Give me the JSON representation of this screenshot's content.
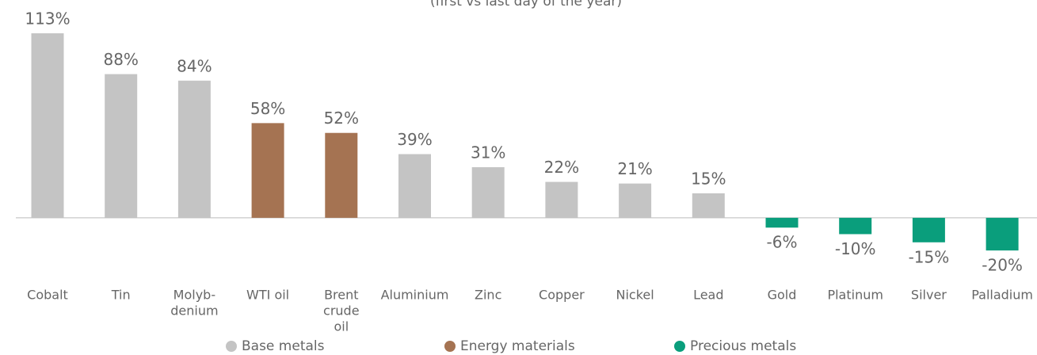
{
  "chart_data": {
    "type": "bar",
    "subtitle": "(first vs last day of the year)",
    "categories": [
      [
        "Cobalt"
      ],
      [
        "Tin"
      ],
      [
        "Molyb-",
        "denium"
      ],
      [
        "WTI oil"
      ],
      [
        "Brent",
        "crude",
        "oil"
      ],
      [
        "Aluminium"
      ],
      [
        "Zinc"
      ],
      [
        "Copper"
      ],
      [
        "Nickel"
      ],
      [
        "Lead"
      ],
      [
        "Gold"
      ],
      [
        "Platinum"
      ],
      [
        "Silver"
      ],
      [
        "Palladium"
      ]
    ],
    "series": [
      {
        "name": "Base metals",
        "color": "#c4c4c4",
        "values": [
          113,
          88,
          84,
          null,
          null,
          39,
          31,
          22,
          21,
          15,
          null,
          null,
          null,
          null
        ],
        "value_labels": [
          "113%",
          "88%",
          "84%",
          null,
          null,
          "39%",
          "31%",
          "22%",
          "21%",
          "15%",
          null,
          null,
          null,
          null
        ]
      },
      {
        "name": "Energy materials",
        "color": "#a57352",
        "values": [
          null,
          null,
          null,
          58,
          52,
          null,
          null,
          null,
          null,
          null,
          null,
          null,
          null,
          null
        ],
        "value_labels": [
          null,
          null,
          null,
          "58%",
          "52%",
          null,
          null,
          null,
          null,
          null,
          null,
          null,
          null,
          null
        ]
      },
      {
        "name": "Precious metals",
        "color": "#0a9e7c",
        "values": [
          null,
          null,
          null,
          null,
          null,
          null,
          null,
          null,
          null,
          null,
          -6,
          -10,
          -15,
          -20
        ],
        "value_labels": [
          null,
          null,
          null,
          null,
          null,
          null,
          null,
          null,
          null,
          null,
          "-6%",
          "-10%",
          "-15%",
          "-20%"
        ]
      }
    ],
    "ylim": [
      -35,
      120
    ]
  }
}
